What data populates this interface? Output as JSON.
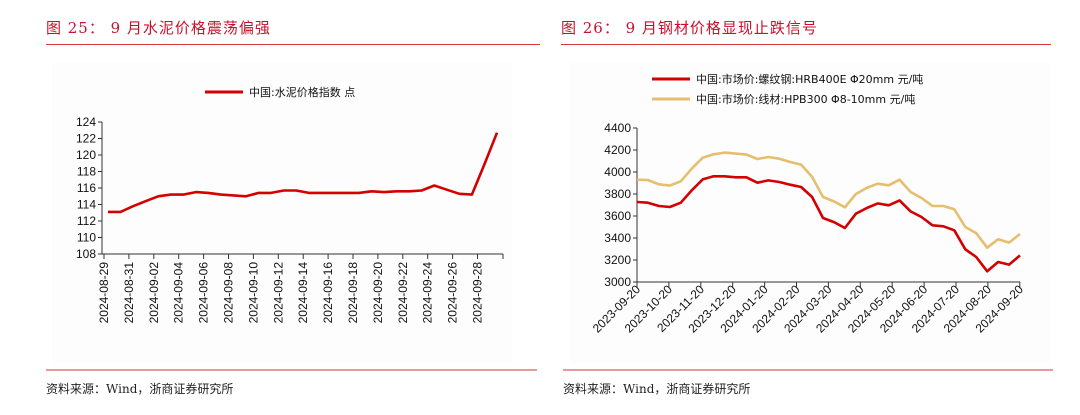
{
  "left": {
    "title": "图 25：  9 月水泥价格震荡偏强",
    "source": "资料来源：Wind，浙商证券研究所"
  },
  "right": {
    "title": "图 26：  9 月钢材价格显现止跌信号",
    "source": "资料来源：Wind，浙商证券研究所"
  },
  "chart_data": [
    {
      "type": "line",
      "title": "9 月水泥价格震荡偏强",
      "xlabel": "",
      "ylabel": "",
      "ylim": [
        108,
        124
      ],
      "yticks": [
        108,
        110,
        112,
        114,
        116,
        118,
        120,
        122,
        124
      ],
      "xtick_labels": [
        "2024-08-29",
        "2024-08-31",
        "2024-09-02",
        "2024-09-04",
        "2024-09-06",
        "2024-09-08",
        "2024-09-10",
        "2024-09-12",
        "2024-09-14",
        "2024-09-16",
        "2024-09-18",
        "2024-09-20",
        "2024-09-22",
        "2024-09-24",
        "2024-09-26",
        "2024-09-28"
      ],
      "legend_position": "top",
      "grid": false,
      "series": [
        {
          "name": "中国:水泥价格指数 点",
          "color": "#d40000",
          "values": [
            113.1,
            113.1,
            113.8,
            114.4,
            115.0,
            115.2,
            115.2,
            115.5,
            115.4,
            115.2,
            115.1,
            115.0,
            115.4,
            115.4,
            115.7,
            115.7,
            115.4,
            115.4,
            115.4,
            115.4,
            115.4,
            115.6,
            115.5,
            115.6,
            115.6,
            115.7,
            116.3,
            115.8,
            115.3,
            115.2,
            118.9,
            122.7
          ]
        }
      ]
    },
    {
      "type": "line",
      "title": "9 月钢材价格显现止跌信号",
      "xlabel": "",
      "ylabel": "",
      "ylim": [
        3000,
        4400
      ],
      "yticks": [
        3000,
        3200,
        3400,
        3600,
        3800,
        4000,
        4200,
        4400
      ],
      "xtick_labels": [
        "2023-09-20",
        "2023-10-20",
        "2023-11-20",
        "2023-12-20",
        "2024-01-20",
        "2024-02-20",
        "2024-03-20",
        "2024-04-20",
        "2024-05-20",
        "2024-06-20",
        "2024-07-20",
        "2024-08-20",
        "2024-09-20"
      ],
      "legend_position": "top",
      "grid": false,
      "series": [
        {
          "name": "中国:市场价:螺纹钢:HRB400E Φ20mm 元/吨",
          "color": "#d40000",
          "values": [
            3727,
            3721,
            3691,
            3682,
            3721,
            3833,
            3933,
            3961,
            3961,
            3952,
            3952,
            3903,
            3924,
            3909,
            3885,
            3864,
            3773,
            3582,
            3545,
            3491,
            3621,
            3673,
            3715,
            3697,
            3742,
            3642,
            3591,
            3515,
            3506,
            3470,
            3297,
            3227,
            3097,
            3182,
            3158,
            3242
          ]
        },
        {
          "name": "中国:市场价:线材:HPB300 Φ8-10mm 元/吨",
          "color": "#e6bf6e",
          "values": [
            3930,
            3927,
            3888,
            3876,
            3915,
            4030,
            4130,
            4161,
            4176,
            4167,
            4158,
            4118,
            4136,
            4121,
            4091,
            4067,
            3955,
            3773,
            3733,
            3679,
            3800,
            3855,
            3894,
            3879,
            3930,
            3818,
            3764,
            3691,
            3691,
            3661,
            3500,
            3445,
            3312,
            3388,
            3358,
            3436
          ]
        }
      ]
    }
  ]
}
